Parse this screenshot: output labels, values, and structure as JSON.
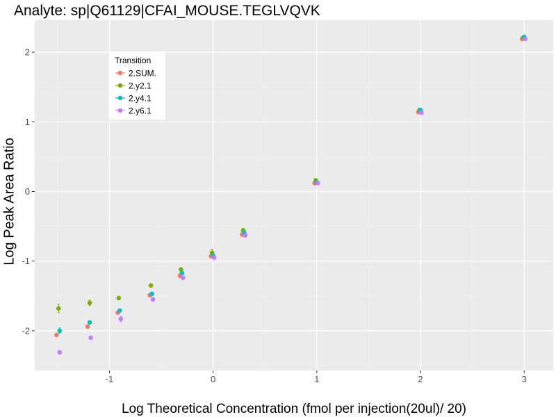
{
  "chart_data": {
    "type": "scatter",
    "title": "Analyte: sp|Q61129|CFAI_MOUSE.TEGLVQVK",
    "xlabel": "Log Theoretical Concentration (fmol per injection(20ul)/ 20)",
    "ylabel": "Log Peak Area Ratio",
    "xlim": [
      -1.72,
      3.28
    ],
    "ylim": [
      -2.57,
      2.46
    ],
    "x_ticks": [
      -1,
      0,
      1,
      2,
      3
    ],
    "x_tick_labels": [
      "-1",
      "0",
      "1",
      "2",
      "3"
    ],
    "y_ticks": [
      -2,
      -1,
      0,
      1,
      2
    ],
    "y_tick_labels": [
      "-2",
      "-1",
      "0",
      "1",
      "2"
    ],
    "grid": true,
    "legend": {
      "title": "Transition",
      "placement": "top-left"
    },
    "series": [
      {
        "name": "2.SUM.",
        "color": "#F8766D",
        "points": [
          [
            -1.51,
            -2.06
          ],
          [
            -1.21,
            -1.94
          ],
          [
            -0.92,
            -1.74
          ],
          [
            -0.61,
            -1.49
          ],
          [
            -0.32,
            -1.21
          ],
          [
            -0.02,
            -0.93
          ],
          [
            0.28,
            -0.62
          ],
          [
            0.98,
            0.12
          ],
          [
            1.98,
            1.14
          ],
          [
            2.98,
            2.19
          ]
        ],
        "err": [
          0.02,
          0.02,
          0.02,
          0.02,
          0.02,
          0.02,
          0.02,
          0.01,
          0.01,
          0.01
        ]
      },
      {
        "name": "2.y2.1",
        "color": "#7CAE00",
        "points": [
          [
            -1.49,
            -1.68
          ],
          [
            -1.19,
            -1.6
          ],
          [
            -0.91,
            -1.53
          ],
          [
            -0.6,
            -1.35
          ],
          [
            -0.31,
            -1.12
          ],
          [
            -0.01,
            -0.88
          ],
          [
            0.29,
            -0.56
          ],
          [
            0.99,
            0.16
          ],
          [
            1.99,
            1.17
          ],
          [
            2.99,
            2.21
          ]
        ],
        "err": [
          0.06,
          0.04,
          0.02,
          0.02,
          0.02,
          0.05,
          0.03,
          0.02,
          0.01,
          0.01
        ]
      },
      {
        "name": "2.y4.1",
        "color": "#00BFC4",
        "points": [
          [
            -1.48,
            -2.0
          ],
          [
            -1.19,
            -1.88
          ],
          [
            -0.9,
            -1.71
          ],
          [
            -0.59,
            -1.47
          ],
          [
            -0.3,
            -1.17
          ],
          [
            0.0,
            -0.92
          ],
          [
            0.3,
            -0.59
          ],
          [
            1.0,
            0.13
          ],
          [
            2.0,
            1.17
          ],
          [
            3.0,
            2.22
          ]
        ],
        "err": [
          0.04,
          0.02,
          0.02,
          0.02,
          0.02,
          0.02,
          0.02,
          0.01,
          0.01,
          0.01
        ]
      },
      {
        "name": "2.y6.1",
        "color": "#C77CFF",
        "points": [
          [
            -1.48,
            -2.31
          ],
          [
            -1.18,
            -2.1
          ],
          [
            -0.89,
            -1.83
          ],
          [
            -0.58,
            -1.55
          ],
          [
            -0.29,
            -1.24
          ],
          [
            0.01,
            -0.95
          ],
          [
            0.31,
            -0.63
          ],
          [
            1.01,
            0.12
          ],
          [
            2.01,
            1.13
          ],
          [
            3.01,
            2.19
          ]
        ],
        "err": [
          0.02,
          0.02,
          0.04,
          0.02,
          0.02,
          0.02,
          0.02,
          0.01,
          0.01,
          0.01
        ]
      }
    ]
  }
}
